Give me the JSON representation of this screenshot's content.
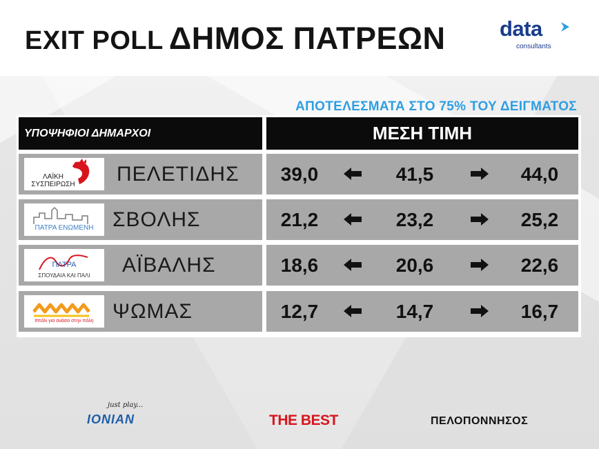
{
  "title": {
    "part1": "EXIT POLL",
    "part2": "ΔΗΜΟΣ ΠΑΤΡΕΩΝ"
  },
  "brand": {
    "word": "data",
    "sub": "consultants",
    "color": "#1a3c8c"
  },
  "subheading": "ΑΠΟΤΕΛΕΣΜΑΤΑ ΣΤΟ 75% ΤΟΥ ΔΕΙΓΜΑΤΟΣ",
  "table": {
    "col_candidates": "ΥΠΟΨΗΦΙΟΙ ΔΗΜΑΡΧΟΙ",
    "col_mean": "ΜΕΣΗ ΤΙΜΗ",
    "rows": [
      {
        "candidate": "ΠΕΛΕΤΙΔΗΣ",
        "party_text": [
          "ΛΑΪΚΗ",
          "ΣΥΣΠΕΙΡΩΣΗ"
        ],
        "party_icon": "rooster-icon",
        "low": "39,0",
        "mean": "41,5",
        "high": "44,0"
      },
      {
        "candidate": "ΣΒΟΛΗΣ",
        "party_text": [
          "ΠΑΤΡΑ ΕΝΩΜΕΝΗ"
        ],
        "party_icon": "city-skyline-icon",
        "low": "21,2",
        "mean": "23,2",
        "high": "25,2"
      },
      {
        "candidate": "ΑΪΒΑΛΗΣ",
        "party_text": [
          "ΠΑΤΡΑ",
          "ΣΠΟΥΔΑΙΑ ΚΑΙ ΠΑΛΙ"
        ],
        "party_icon": "swoosh-icon",
        "low": "18,6",
        "mean": "20,6",
        "high": "22,6"
      },
      {
        "candidate": "ΨΩΜΑΣ",
        "party_text": [
          "#πάλι για ανάσα στην πόλη"
        ],
        "party_icon": "waves-icon",
        "low": "12,7",
        "mean": "14,7",
        "high": "16,7"
      }
    ]
  },
  "footer": {
    "ionian_tag": "just play...",
    "ionian_name": "IONIAN",
    "best": "THE BEST",
    "peloponnisos": "ΠΕΛΟΠΟΝΝΗΣΟΣ"
  },
  "colors": {
    "accent": "#2e9ee3",
    "header_bg": "#0b0b0b",
    "row_bg": "#a8a8a8",
    "best_red": "#d8141c"
  }
}
